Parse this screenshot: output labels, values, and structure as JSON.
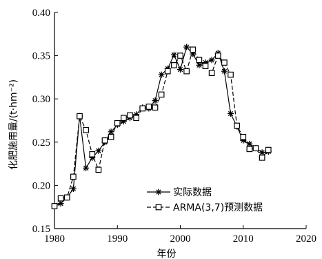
{
  "chart_data": {
    "type": "line",
    "xlabel": "年份",
    "ylabel": "化肥施用量/(t·hm⁻²)",
    "xlim": [
      1980,
      2020
    ],
    "ylim": [
      0.15,
      0.4
    ],
    "xticks": [
      1980,
      1990,
      2000,
      2010,
      2020
    ],
    "yticks": [
      0.15,
      0.2,
      0.25,
      0.3,
      0.35,
      0.4
    ],
    "xtick_labels": [
      "1980",
      "1990",
      "2000",
      "2010",
      "2020"
    ],
    "ytick_labels": [
      "0.15",
      "0.20",
      "0.25",
      "0.30",
      "0.35",
      "0.40"
    ],
    "legend_position": "lower-right",
    "x": [
      1980,
      1981,
      1982,
      1983,
      1984,
      1985,
      1986,
      1987,
      1988,
      1989,
      1990,
      1991,
      1992,
      1993,
      1994,
      1995,
      1996,
      1997,
      1998,
      1999,
      2000,
      2001,
      2002,
      2003,
      2004,
      2005,
      2006,
      2007,
      2008,
      2009,
      2010,
      2011,
      2012,
      2013,
      2014
    ],
    "series": [
      {
        "name": "实际数据",
        "marker": "asterisk",
        "line": "solid",
        "values": [
          0.176,
          0.179,
          0.186,
          0.196,
          0.28,
          0.22,
          0.232,
          0.24,
          0.25,
          0.262,
          0.27,
          0.274,
          0.278,
          0.282,
          0.29,
          0.289,
          0.298,
          0.328,
          0.335,
          0.351,
          0.334,
          0.36,
          0.352,
          0.339,
          0.342,
          0.345,
          0.353,
          0.332,
          0.283,
          0.268,
          0.252,
          0.248,
          0.243,
          0.238,
          0.239
        ]
      },
      {
        "name": "ARMA(3,7)预测数据",
        "marker": "square",
        "line": "dashed",
        "values": [
          0.176,
          0.185,
          0.186,
          0.21,
          0.28,
          0.264,
          0.236,
          0.218,
          0.252,
          0.256,
          0.272,
          0.278,
          0.281,
          0.278,
          0.289,
          0.291,
          0.29,
          0.305,
          0.332,
          0.339,
          0.35,
          0.332,
          0.357,
          0.345,
          0.338,
          0.33,
          0.35,
          0.342,
          0.328,
          0.269,
          0.256,
          0.242,
          0.243,
          0.232,
          0.241
        ]
      }
    ]
  }
}
